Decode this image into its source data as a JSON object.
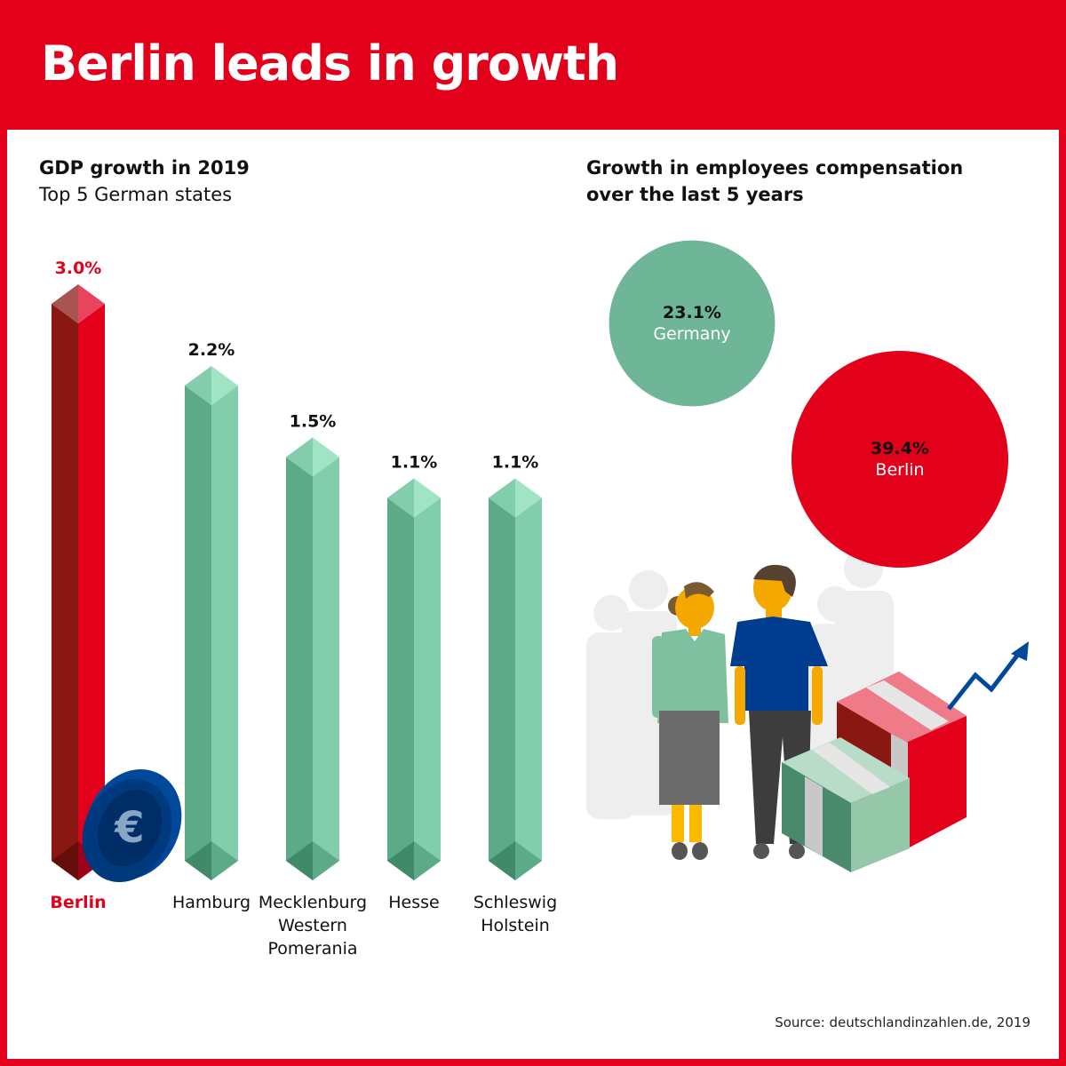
{
  "header": {
    "title": "Berlin leads in growth"
  },
  "source": "Source: deutschlandinzahlen.de, 2019",
  "colors": {
    "brand_red": "#e2001a",
    "green": "#82cdab",
    "green_dark": "#5caa88",
    "red_dark": "#8a1812",
    "blue": "#00489a"
  },
  "chart_data": [
    {
      "type": "bar",
      "title": "GDP growth in 2019",
      "subtitle": "Top 5 German states",
      "categories": [
        "Berlin",
        "Hamburg",
        "Mecklenburg\nWestern\nPomerania",
        "Hesse",
        "Schleswig\nHolstein"
      ],
      "values": [
        3.0,
        2.2,
        1.5,
        1.1,
        1.1
      ],
      "value_labels": [
        "3.0%",
        "2.2%",
        "1.5%",
        "1.1%",
        "1.1%"
      ],
      "highlight": "Berlin",
      "unit": "%",
      "grid": false,
      "decoration": "euro-coin-icon"
    },
    {
      "type": "bubble",
      "title": "Growth in employees compensation\nover the last 5 years",
      "categories": [
        "Germany",
        "Berlin"
      ],
      "values": [
        23.1,
        39.4
      ],
      "value_labels": [
        "23.1%",
        "39.4%"
      ],
      "colors": [
        "#6fb597",
        "#e2001a"
      ],
      "decoration": "people-and-money-illustration"
    }
  ]
}
